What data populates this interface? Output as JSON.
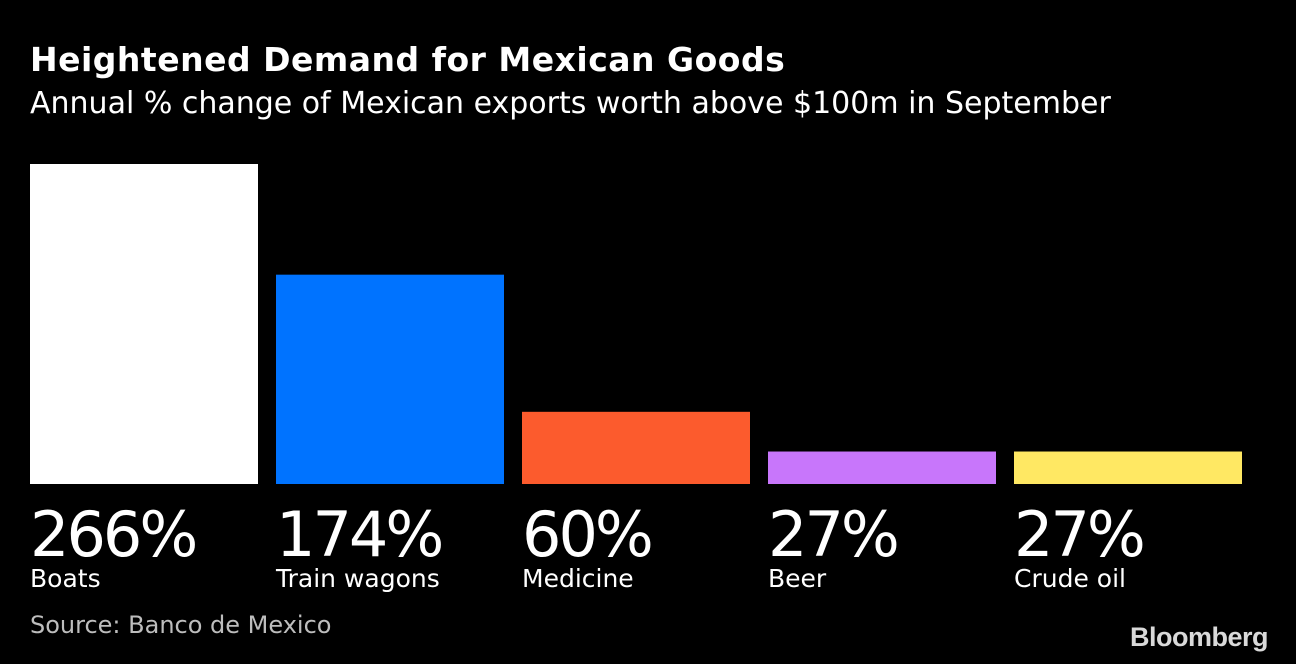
{
  "chart_data": {
    "type": "bar",
    "title": "Heightened Demand for Mexican Goods",
    "subtitle": "Annual % change of Mexican exports worth above $100m in September",
    "categories": [
      "Boats",
      "Train wagons",
      "Medicine",
      "Beer",
      "Crude oil"
    ],
    "values": [
      266,
      174,
      60,
      27,
      27
    ],
    "value_labels": [
      "266%",
      "174%",
      "60%",
      "27%",
      "27%"
    ],
    "colors": [
      "#ffffff",
      "#0073ff",
      "#fc5b2d",
      "#c876fb",
      "#ffe863"
    ],
    "unit": "%",
    "ylim": [
      0,
      266
    ],
    "xlabel": "",
    "ylabel": "",
    "grid": false
  },
  "source": "Source: Banco de Mexico",
  "brand": "Bloomberg"
}
